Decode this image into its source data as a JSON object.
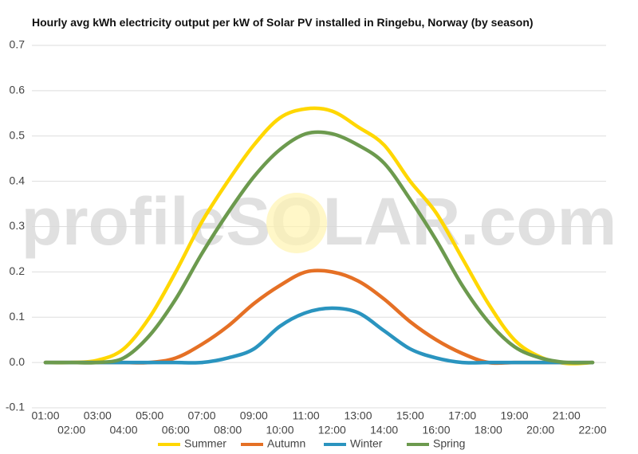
{
  "chart_data": {
    "type": "line",
    "title": "Hourly avg kWh electricity output per kW of Solar PV installed in Ringebu, Norway (by season)",
    "watermark": "profileSOLAR.com",
    "x": [
      "01:00",
      "02:00",
      "03:00",
      "04:00",
      "05:00",
      "06:00",
      "07:00",
      "08:00",
      "09:00",
      "10:00",
      "11:00",
      "12:00",
      "13:00",
      "14:00",
      "15:00",
      "16:00",
      "17:00",
      "18:00",
      "19:00",
      "20:00",
      "21:00",
      "22:00"
    ],
    "ylim": [
      -0.1,
      0.7
    ],
    "yticks": [
      {
        "value": -0.1,
        "label": "-0.1"
      },
      {
        "value": 0,
        "label": "0.0"
      },
      0.1,
      0.2,
      0.3,
      0.4,
      0.5,
      0.6,
      0.7
    ],
    "grid": true,
    "legend": "bottom",
    "series": [
      {
        "name": "Summer",
        "color": "#ffd700",
        "values": [
          0,
          0,
          0.005,
          0.03,
          0.1,
          0.2,
          0.31,
          0.4,
          0.48,
          0.54,
          0.56,
          0.555,
          0.52,
          0.48,
          0.4,
          0.33,
          0.23,
          0.13,
          0.05,
          0.012,
          -0.002,
          0
        ]
      },
      {
        "name": "Autumn",
        "color": "#e57025",
        "values": [
          0,
          0,
          0,
          0,
          0,
          0.01,
          0.04,
          0.08,
          0.13,
          0.17,
          0.2,
          0.2,
          0.18,
          0.14,
          0.09,
          0.05,
          0.02,
          0,
          0,
          0,
          0,
          0
        ]
      },
      {
        "name": "Winter",
        "color": "#2a94bf",
        "values": [
          0,
          0,
          0,
          0,
          0,
          0,
          0,
          0.01,
          0.03,
          0.08,
          0.11,
          0.12,
          0.11,
          0.07,
          0.03,
          0.01,
          0,
          0,
          0,
          0,
          0,
          0
        ]
      },
      {
        "name": "Spring",
        "color": "#6c9a4e",
        "values": [
          0,
          0,
          0,
          0.01,
          0.06,
          0.14,
          0.24,
          0.33,
          0.41,
          0.47,
          0.505,
          0.505,
          0.48,
          0.44,
          0.36,
          0.27,
          0.17,
          0.09,
          0.035,
          0.01,
          0,
          0
        ]
      }
    ]
  }
}
